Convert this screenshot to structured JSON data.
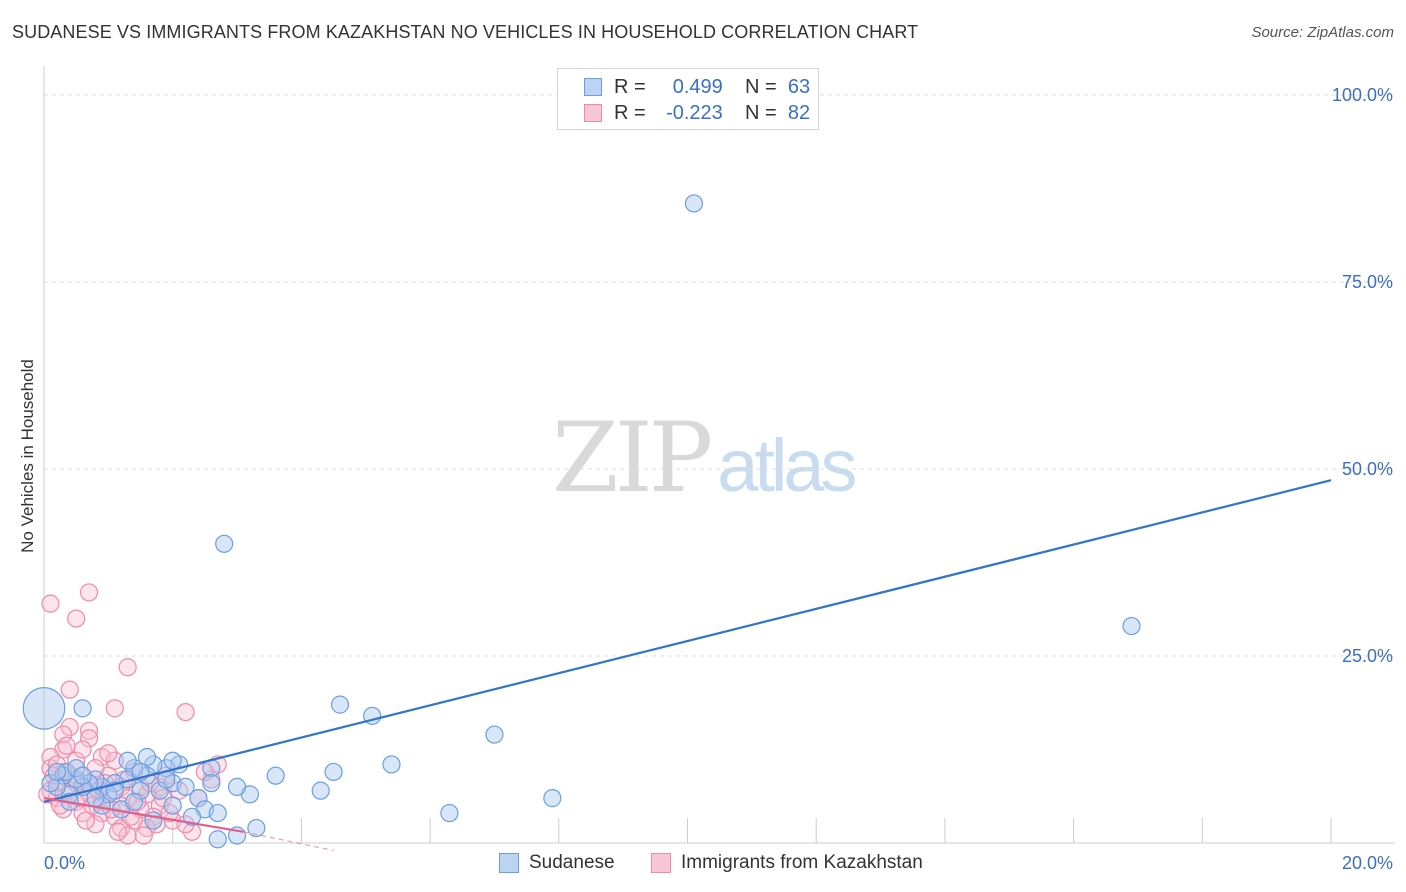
{
  "title": "SUDANESE VS IMMIGRANTS FROM KAZAKHSTAN NO VEHICLES IN HOUSEHOLD CORRELATION CHART",
  "source": "Source: ZipAtlas.com",
  "watermark": {
    "zip": "ZIP",
    "atlas": "atlas"
  },
  "legend": {
    "rows": [
      {
        "r_label": "R =",
        "r_value": "0.499",
        "n_label": "N =",
        "n_value": "63"
      },
      {
        "r_label": "R =",
        "r_value": "-0.223",
        "n_label": "N =",
        "n_value": "82"
      }
    ]
  },
  "chart_data": {
    "type": "scatter",
    "title": "SUDANESE VS IMMIGRANTS FROM KAZAKHSTAN NO VEHICLES IN HOUSEHOLD CORRELATION CHART",
    "xlabel": "",
    "ylabel": "No Vehicles in Household",
    "xlim": [
      0,
      20
    ],
    "ylim": [
      0,
      100
    ],
    "x_tick_labels": [
      "0.0%",
      "20.0%"
    ],
    "y_tick_labels": [
      "25.0%",
      "50.0%",
      "75.0%",
      "100.0%"
    ],
    "y_ticks": [
      25,
      50,
      75,
      100
    ],
    "grid": true,
    "legend_position": "top-center",
    "colors": {
      "sudanese": "#6a9fe0",
      "kazakhstan": "#f08aaa",
      "sudanese_line": "#2f74d0",
      "kazakhstan_line": "#e0608a",
      "axis_text": "#3a6fc4"
    },
    "series": [
      {
        "name": "Sudanese",
        "r": 0.499,
        "n": 63,
        "trend": {
          "x": [
            0,
            20
          ],
          "y": [
            5.5,
            48.5
          ]
        },
        "points": [
          {
            "x": 0.0,
            "y": 18.0,
            "s": 3
          },
          {
            "x": 0.6,
            "y": 18.0
          },
          {
            "x": 10.1,
            "y": 85.5
          },
          {
            "x": 2.8,
            "y": 40.0
          },
          {
            "x": 16.9,
            "y": 29.0
          },
          {
            "x": 4.6,
            "y": 18.5
          },
          {
            "x": 5.1,
            "y": 17.0
          },
          {
            "x": 7.0,
            "y": 14.5
          },
          {
            "x": 5.4,
            "y": 10.5
          },
          {
            "x": 4.5,
            "y": 9.5
          },
          {
            "x": 3.6,
            "y": 9.0
          },
          {
            "x": 7.9,
            "y": 6.0
          },
          {
            "x": 6.3,
            "y": 4.0
          },
          {
            "x": 3.2,
            "y": 6.5
          },
          {
            "x": 3.0,
            "y": 7.5
          },
          {
            "x": 2.6,
            "y": 10.0
          },
          {
            "x": 2.1,
            "y": 10.5
          },
          {
            "x": 1.9,
            "y": 10.0
          },
          {
            "x": 1.7,
            "y": 10.5
          },
          {
            "x": 1.6,
            "y": 9.0
          },
          {
            "x": 1.4,
            "y": 10.0
          },
          {
            "x": 1.3,
            "y": 8.5
          },
          {
            "x": 1.1,
            "y": 8.0
          },
          {
            "x": 0.9,
            "y": 7.5
          },
          {
            "x": 0.8,
            "y": 8.5
          },
          {
            "x": 0.7,
            "y": 8.0
          },
          {
            "x": 0.6,
            "y": 7.5
          },
          {
            "x": 0.5,
            "y": 8.5
          },
          {
            "x": 0.4,
            "y": 6.5
          },
          {
            "x": 0.3,
            "y": 9.0
          },
          {
            "x": 0.2,
            "y": 7.5
          },
          {
            "x": 0.1,
            "y": 8.0
          },
          {
            "x": 0.35,
            "y": 9.5
          },
          {
            "x": 0.5,
            "y": 10.0
          },
          {
            "x": 1.0,
            "y": 6.5
          },
          {
            "x": 1.2,
            "y": 4.5
          },
          {
            "x": 1.5,
            "y": 7.0
          },
          {
            "x": 1.8,
            "y": 7.0
          },
          {
            "x": 2.0,
            "y": 8.0
          },
          {
            "x": 2.2,
            "y": 7.5
          },
          {
            "x": 2.4,
            "y": 6.0
          },
          {
            "x": 2.5,
            "y": 4.5
          },
          {
            "x": 2.7,
            "y": 4.0
          },
          {
            "x": 2.3,
            "y": 3.5
          },
          {
            "x": 1.7,
            "y": 3.0
          },
          {
            "x": 2.0,
            "y": 5.0
          },
          {
            "x": 1.4,
            "y": 5.5
          },
          {
            "x": 0.9,
            "y": 5.0
          },
          {
            "x": 3.3,
            "y": 2.0
          },
          {
            "x": 3.0,
            "y": 1.0
          },
          {
            "x": 2.7,
            "y": 0.5
          },
          {
            "x": 4.3,
            "y": 7.0
          },
          {
            "x": 1.3,
            "y": 11.0
          },
          {
            "x": 1.6,
            "y": 11.5
          },
          {
            "x": 2.0,
            "y": 11.0
          },
          {
            "x": 0.4,
            "y": 5.5
          },
          {
            "x": 0.8,
            "y": 6.0
          },
          {
            "x": 1.1,
            "y": 7.0
          },
          {
            "x": 0.2,
            "y": 9.5
          },
          {
            "x": 1.9,
            "y": 8.5
          },
          {
            "x": 2.6,
            "y": 8.0
          },
          {
            "x": 0.6,
            "y": 9.0
          },
          {
            "x": 1.5,
            "y": 9.5
          }
        ]
      },
      {
        "name": "Immigrants from Kazakhstan",
        "r": -0.223,
        "n": 82,
        "trend": {
          "x": [
            0,
            3.1
          ],
          "y": [
            6.0,
            1.5
          ]
        },
        "trend_dashed": {
          "x": [
            3.1,
            4.5
          ],
          "y": [
            1.5,
            -1.0
          ]
        },
        "points": [
          {
            "x": 0.1,
            "y": 32.0
          },
          {
            "x": 0.7,
            "y": 33.5
          },
          {
            "x": 0.5,
            "y": 30.0
          },
          {
            "x": 1.3,
            "y": 23.5
          },
          {
            "x": 0.4,
            "y": 20.5
          },
          {
            "x": 1.1,
            "y": 18.0
          },
          {
            "x": 2.2,
            "y": 17.5
          },
          {
            "x": 0.4,
            "y": 15.5
          },
          {
            "x": 0.7,
            "y": 15.0
          },
          {
            "x": 0.3,
            "y": 14.5
          },
          {
            "x": 0.7,
            "y": 14.0
          },
          {
            "x": 0.3,
            "y": 12.5
          },
          {
            "x": 0.1,
            "y": 11.5
          },
          {
            "x": 0.9,
            "y": 11.5
          },
          {
            "x": 1.1,
            "y": 11.0
          },
          {
            "x": 2.7,
            "y": 10.5
          },
          {
            "x": 0.1,
            "y": 10.0
          },
          {
            "x": 0.3,
            "y": 9.5
          },
          {
            "x": 0.6,
            "y": 9.0
          },
          {
            "x": 1.0,
            "y": 9.0
          },
          {
            "x": 1.4,
            "y": 9.5
          },
          {
            "x": 2.6,
            "y": 8.5
          },
          {
            "x": 0.2,
            "y": 8.0
          },
          {
            "x": 0.5,
            "y": 8.0
          },
          {
            "x": 0.8,
            "y": 7.5
          },
          {
            "x": 1.2,
            "y": 7.5
          },
          {
            "x": 1.5,
            "y": 7.5
          },
          {
            "x": 1.8,
            "y": 7.5
          },
          {
            "x": 0.1,
            "y": 7.0
          },
          {
            "x": 0.4,
            "y": 7.0
          },
          {
            "x": 0.7,
            "y": 6.5
          },
          {
            "x": 1.0,
            "y": 6.5
          },
          {
            "x": 1.3,
            "y": 6.0
          },
          {
            "x": 1.6,
            "y": 6.5
          },
          {
            "x": 0.2,
            "y": 6.0
          },
          {
            "x": 0.5,
            "y": 5.5
          },
          {
            "x": 0.9,
            "y": 5.5
          },
          {
            "x": 1.2,
            "y": 5.0
          },
          {
            "x": 1.5,
            "y": 4.5
          },
          {
            "x": 1.8,
            "y": 5.0
          },
          {
            "x": 0.3,
            "y": 4.5
          },
          {
            "x": 0.6,
            "y": 4.0
          },
          {
            "x": 0.9,
            "y": 4.0
          },
          {
            "x": 1.1,
            "y": 3.5
          },
          {
            "x": 1.4,
            "y": 3.0
          },
          {
            "x": 1.7,
            "y": 3.5
          },
          {
            "x": 2.0,
            "y": 3.0
          },
          {
            "x": 0.8,
            "y": 2.5
          },
          {
            "x": 1.2,
            "y": 2.0
          },
          {
            "x": 1.6,
            "y": 2.0
          },
          {
            "x": 2.3,
            "y": 1.5
          },
          {
            "x": 1.3,
            "y": 1.0
          },
          {
            "x": 0.5,
            "y": 11.0
          },
          {
            "x": 0.2,
            "y": 10.5
          },
          {
            "x": 0.8,
            "y": 10.0
          },
          {
            "x": 1.9,
            "y": 9.0
          },
          {
            "x": 2.1,
            "y": 7.0
          },
          {
            "x": 0.6,
            "y": 12.5
          },
          {
            "x": 1.0,
            "y": 12.0
          },
          {
            "x": 0.35,
            "y": 13.0
          },
          {
            "x": 1.25,
            "y": 8.5
          },
          {
            "x": 0.45,
            "y": 8.5
          },
          {
            "x": 0.15,
            "y": 9.0
          },
          {
            "x": 0.95,
            "y": 8.0
          },
          {
            "x": 1.65,
            "y": 8.0
          },
          {
            "x": 2.4,
            "y": 6.0
          },
          {
            "x": 0.55,
            "y": 6.0
          },
          {
            "x": 1.45,
            "y": 5.5
          },
          {
            "x": 0.25,
            "y": 5.0
          },
          {
            "x": 0.75,
            "y": 5.0
          },
          {
            "x": 1.05,
            "y": 4.5
          },
          {
            "x": 1.95,
            "y": 4.0
          },
          {
            "x": 1.35,
            "y": 3.5
          },
          {
            "x": 0.65,
            "y": 3.0
          },
          {
            "x": 1.75,
            "y": 2.5
          },
          {
            "x": 2.2,
            "y": 2.5
          },
          {
            "x": 1.15,
            "y": 1.5
          },
          {
            "x": 1.55,
            "y": 1.0
          },
          {
            "x": 0.85,
            "y": 7.0
          },
          {
            "x": 1.85,
            "y": 6.0
          },
          {
            "x": 0.05,
            "y": 6.5
          },
          {
            "x": 2.5,
            "y": 9.5
          }
        ]
      }
    ]
  },
  "bottom_legend": [
    {
      "label": "Sudanese"
    },
    {
      "label": "Immigrants from Kazakhstan"
    }
  ]
}
